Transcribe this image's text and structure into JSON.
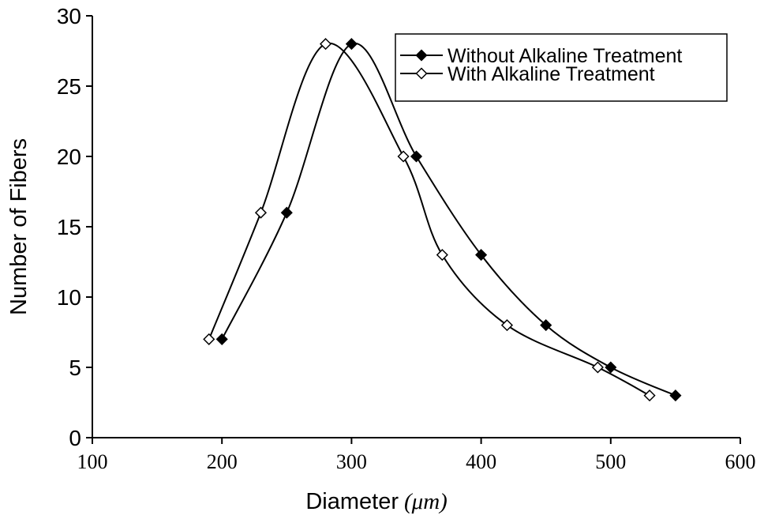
{
  "chart_data": {
    "type": "line",
    "title": "",
    "xlabel": "Diameter",
    "xlabel_unit": "(μm)",
    "ylabel": "Number of Fibers",
    "xlim": [
      100,
      600
    ],
    "ylim": [
      0,
      30
    ],
    "x_ticks": [
      100,
      200,
      300,
      400,
      500,
      600
    ],
    "y_ticks": [
      0,
      5,
      10,
      15,
      20,
      25,
      30
    ],
    "grid": false,
    "smooth": true,
    "legend_position": "top-right",
    "series": [
      {
        "name": "Without Alkaline Treatment",
        "marker": "filled-diamond",
        "color": "#000000",
        "x": [
          200,
          250,
          300,
          350,
          400,
          450,
          500,
          550
        ],
        "y": [
          7,
          16,
          28,
          20,
          13,
          8,
          5,
          3
        ]
      },
      {
        "name": "With Alkaline Treatment",
        "marker": "open-diamond",
        "color": "#000000",
        "x": [
          190,
          230,
          280,
          340,
          370,
          420,
          490,
          530
        ],
        "y": [
          7,
          16,
          28,
          20,
          13,
          8,
          5,
          3
        ]
      }
    ]
  }
}
